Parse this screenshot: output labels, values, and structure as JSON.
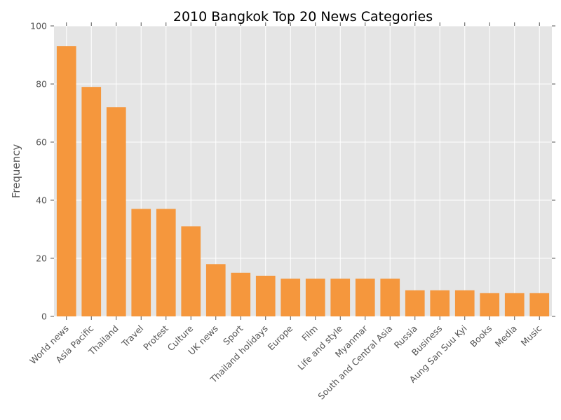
{
  "chart_data": {
    "type": "bar",
    "title": "2010 Bangkok Top 20 News Categories",
    "xlabel": "",
    "ylabel": "Frequency",
    "ylim": [
      0,
      100
    ],
    "yticks": [
      0,
      20,
      40,
      60,
      80,
      100
    ],
    "grid": true,
    "categories": [
      "World news",
      "Asia Pacific",
      "Thailand",
      "Travel",
      "Protest",
      "Culture",
      "UK news",
      "Sport",
      "Thailand holidays",
      "Europe",
      "Film",
      "Life and style",
      "Myanmar",
      "South and Central Asia",
      "Russia",
      "Business",
      "Aung San Suu Kyi",
      "Books",
      "Media",
      "Music"
    ],
    "values": [
      93,
      79,
      72,
      37,
      37,
      31,
      18,
      15,
      14,
      13,
      13,
      13,
      13,
      13,
      9,
      9,
      9,
      8,
      8,
      8
    ],
    "colors": {
      "bar": "#f5973d",
      "plot_background": "#e5e5e5",
      "grid": "#ffffff",
      "text": "#555555"
    }
  }
}
